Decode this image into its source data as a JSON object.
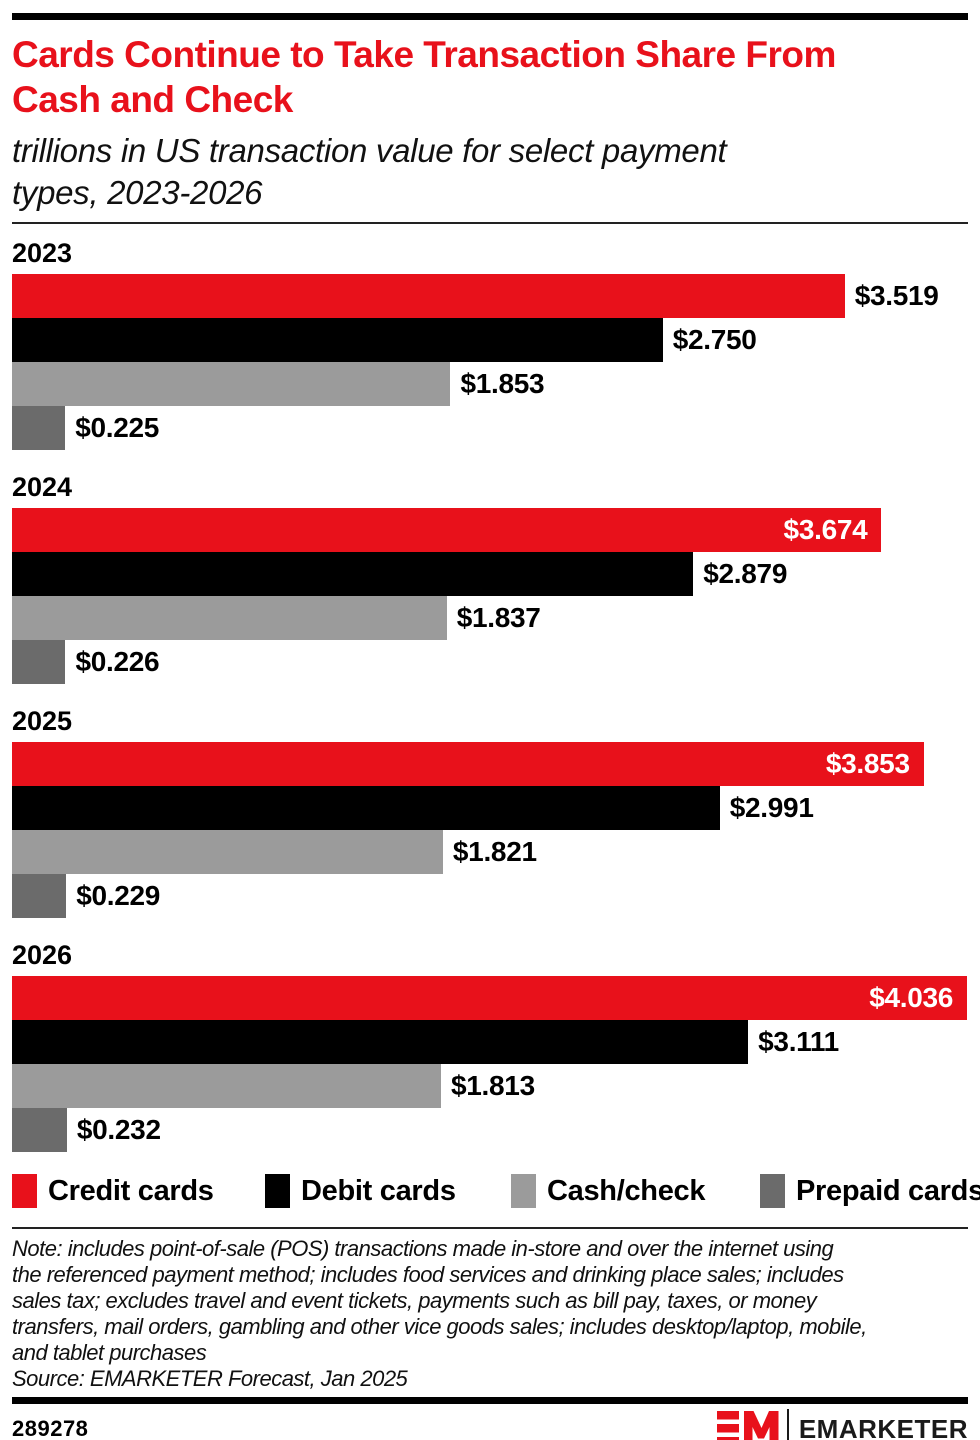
{
  "colors": {
    "brand_red": "#e8111b",
    "debit_black": "#000000",
    "cash_gray": "#9b9b9b",
    "prepaid_gray": "#6b6b6b",
    "rule_black": "#000000"
  },
  "header": {
    "title": "Cards Continue to Take Transaction Share From Cash and Check",
    "title_lines": [
      "Cards Continue to Take Transaction Share From",
      "Cash and Check"
    ],
    "subtitle": "trillions in US transaction value for select payment types, 2023-2026",
    "subtitle_lines": [
      "trillions in US transaction value for select payment",
      "types, 2023-2026"
    ]
  },
  "chart_data": {
    "type": "bar",
    "orientation": "horizontal",
    "unit": "trillions of US dollars",
    "xmax": 4.04,
    "grid": false,
    "legend_position": "bottom",
    "categories": [
      "2023",
      "2024",
      "2025",
      "2026"
    ],
    "series": [
      {
        "name": "Credit cards",
        "color": "#e8111b",
        "values": [
          3.519,
          3.674,
          3.853,
          4.036
        ],
        "labels": [
          "$3.519",
          "$3.674",
          "$3.853",
          "$4.036"
        ],
        "label_inside": [
          false,
          true,
          true,
          true
        ]
      },
      {
        "name": "Debit cards",
        "color": "#000000",
        "values": [
          2.75,
          2.879,
          2.991,
          3.111
        ],
        "labels": [
          "$2.750",
          "$2.879",
          "$2.991",
          "$3.111"
        ],
        "label_inside": [
          false,
          false,
          false,
          false
        ]
      },
      {
        "name": "Cash/check",
        "color": "#9b9b9b",
        "values": [
          1.853,
          1.837,
          1.821,
          1.813
        ],
        "labels": [
          "$1.853",
          "$1.837",
          "$1.821",
          "$1.813"
        ],
        "label_inside": [
          false,
          false,
          false,
          false
        ]
      },
      {
        "name": "Prepaid cards",
        "color": "#6b6b6b",
        "values": [
          0.225,
          0.226,
          0.229,
          0.232
        ],
        "labels": [
          "$0.225",
          "$0.226",
          "$0.229",
          "$0.232"
        ],
        "label_inside": [
          false,
          false,
          false,
          false
        ]
      }
    ]
  },
  "note": {
    "lines": [
      "Note: includes point-of-sale (POS) transactions made in-store and over the internet using",
      "the referenced payment method; includes food services and drinking place sales; includes",
      "sales tax; excludes travel and event tickets, payments such as bill pay, taxes, or money",
      "transfers, mail orders, gambling and other vice goods sales; includes desktop/laptop, mobile,",
      "and tablet purchases"
    ],
    "source": "Source: EMARKETER Forecast, Jan 2025"
  },
  "footer": {
    "chart_id": "289278",
    "brand_monogram": "EM",
    "brand_name": "EMARKETER"
  }
}
